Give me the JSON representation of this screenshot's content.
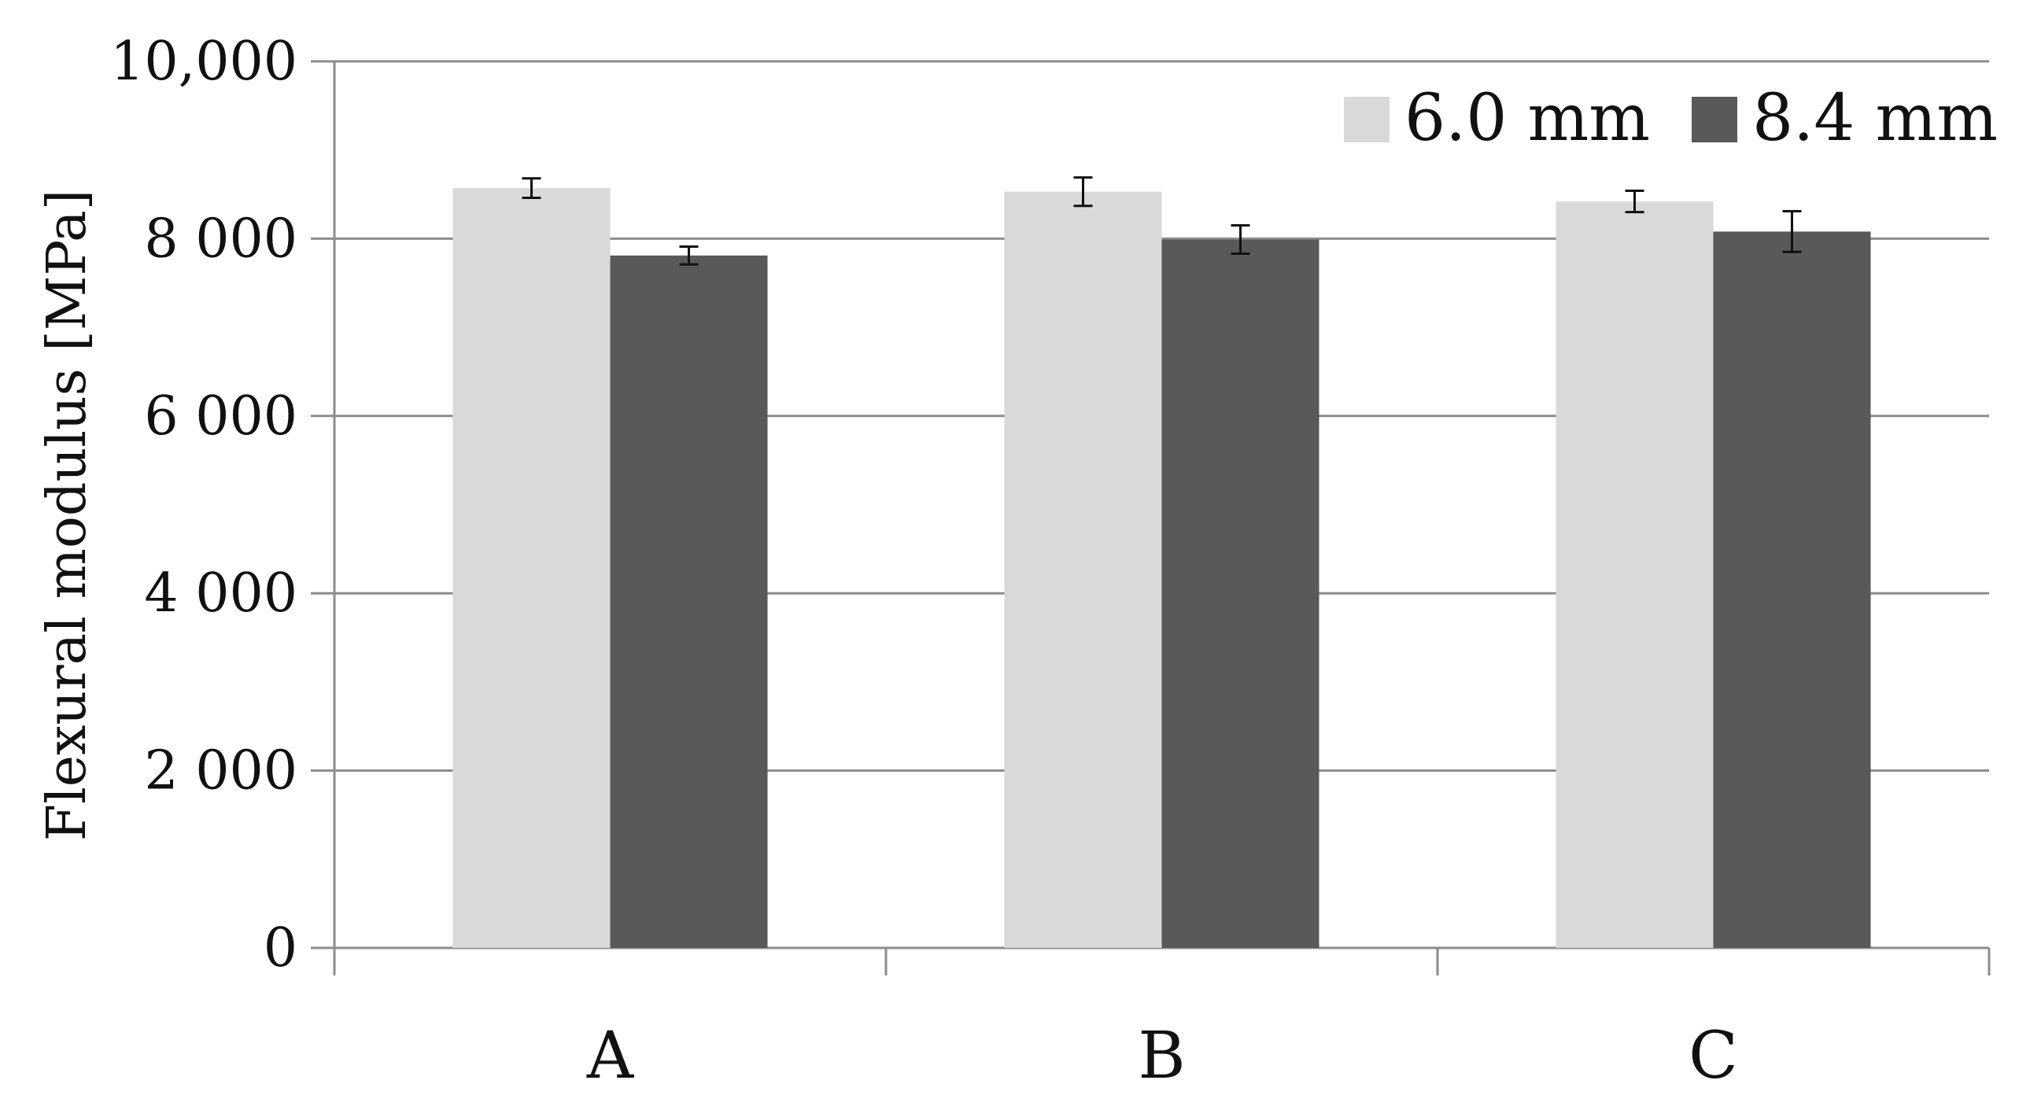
{
  "chart_data": {
    "type": "bar",
    "categories": [
      "A",
      "B",
      "C"
    ],
    "series": [
      {
        "name": "6.0 mm",
        "color": "#d9d9d9",
        "values": [
          8570,
          8530,
          8420
        ],
        "errors": [
          110,
          160,
          120
        ]
      },
      {
        "name": "8.4 mm",
        "color": "#595959",
        "values": [
          7810,
          7990,
          8080
        ],
        "errors": [
          100,
          160,
          230
        ]
      }
    ],
    "title": "",
    "xlabel": "",
    "ylabel": "Flexural  modulus  [MPa]",
    "ylim": [
      0,
      10000
    ],
    "yticks": [
      0,
      2000,
      4000,
      6000,
      8000,
      10000
    ],
    "ytick_labels": [
      "0",
      "2 000",
      "4 000",
      "6 000",
      "8 000",
      "10,000"
    ],
    "grid": true,
    "legend_position": "top-right"
  }
}
